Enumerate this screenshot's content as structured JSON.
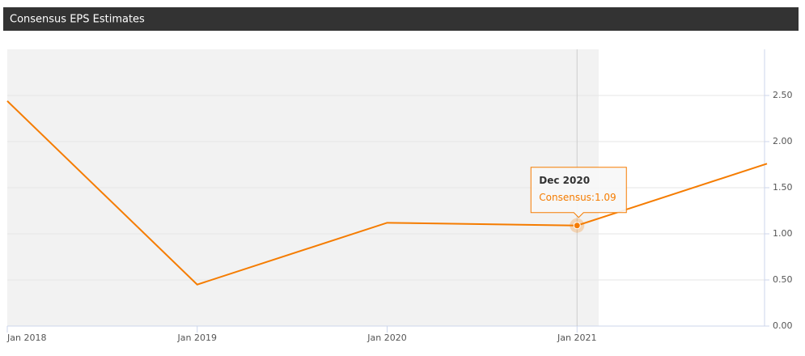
{
  "chart_data": {
    "type": "line",
    "title": "Consensus EPS Estimates",
    "x": [
      "2018-01",
      "2019-01",
      "2020-01",
      "2021-01",
      "2022-01"
    ],
    "series": [
      {
        "name": "Consensus",
        "color": "#f57c00",
        "values": [
          2.44,
          0.45,
          1.12,
          1.09,
          1.76
        ]
      }
    ],
    "xlim": [
      "2018-01",
      "2022-01"
    ],
    "xticks": [
      {
        "value": "2018-01",
        "label": "Jan 2018"
      },
      {
        "value": "2019-01",
        "label": "Jan 2019"
      },
      {
        "value": "2020-01",
        "label": "Jan 2020"
      },
      {
        "value": "2021-01",
        "label": "Jan 2021"
      }
    ],
    "ylim": [
      0,
      3
    ],
    "yticks": [
      {
        "value": 0,
        "label": "0.00"
      },
      {
        "value": 0.5,
        "label": "0.50"
      },
      {
        "value": 1,
        "label": "1.00"
      },
      {
        "value": 1.5,
        "label": "1.50"
      },
      {
        "value": 2,
        "label": "2.00"
      },
      {
        "value": 2.5,
        "label": "2.50"
      }
    ],
    "grid": true,
    "tooltip": {
      "title": "Dec 2020",
      "text": "Consensus:1.09",
      "point": 3
    }
  }
}
